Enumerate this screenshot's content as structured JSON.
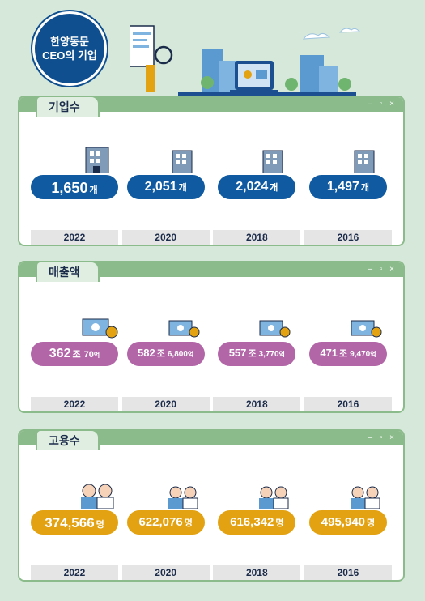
{
  "badge": {
    "line1": "한양동문",
    "line2": "CEO의 기업"
  },
  "sections": [
    {
      "title": "기업수",
      "items": [
        {
          "value": "1,650",
          "unit": "개",
          "year": "2022"
        },
        {
          "value": "2,051",
          "unit": "개",
          "year": "2020"
        },
        {
          "value": "2,024",
          "unit": "개",
          "year": "2018"
        },
        {
          "value": "1,497",
          "unit": "개",
          "year": "2016"
        }
      ]
    },
    {
      "title": "매출액",
      "items": [
        {
          "value": "362",
          "unit": "조",
          "value2": "70",
          "unit2": "억",
          "year": "2022"
        },
        {
          "value": "582",
          "unit": "조",
          "value2": "6,800",
          "unit2": "억",
          "year": "2020"
        },
        {
          "value": "557",
          "unit": "조",
          "value2": "3,770",
          "unit2": "억",
          "year": "2018"
        },
        {
          "value": "471",
          "unit": "조",
          "value2": "9,470",
          "unit2": "억",
          "year": "2016"
        }
      ]
    },
    {
      "title": "고용수",
      "items": [
        {
          "value": "374,566",
          "unit": "명",
          "year": "2022"
        },
        {
          "value": "622,076",
          "unit": "명",
          "year": "2020"
        },
        {
          "value": "616,342",
          "unit": "명",
          "year": "2018"
        },
        {
          "value": "495,940",
          "unit": "명",
          "year": "2016"
        }
      ]
    }
  ],
  "window_controls": "– ▫ ×",
  "colors": {
    "navy": "#0f5aa0",
    "purple": "#b266a8",
    "orange": "#e3a212",
    "green": "#8bbb8b"
  }
}
